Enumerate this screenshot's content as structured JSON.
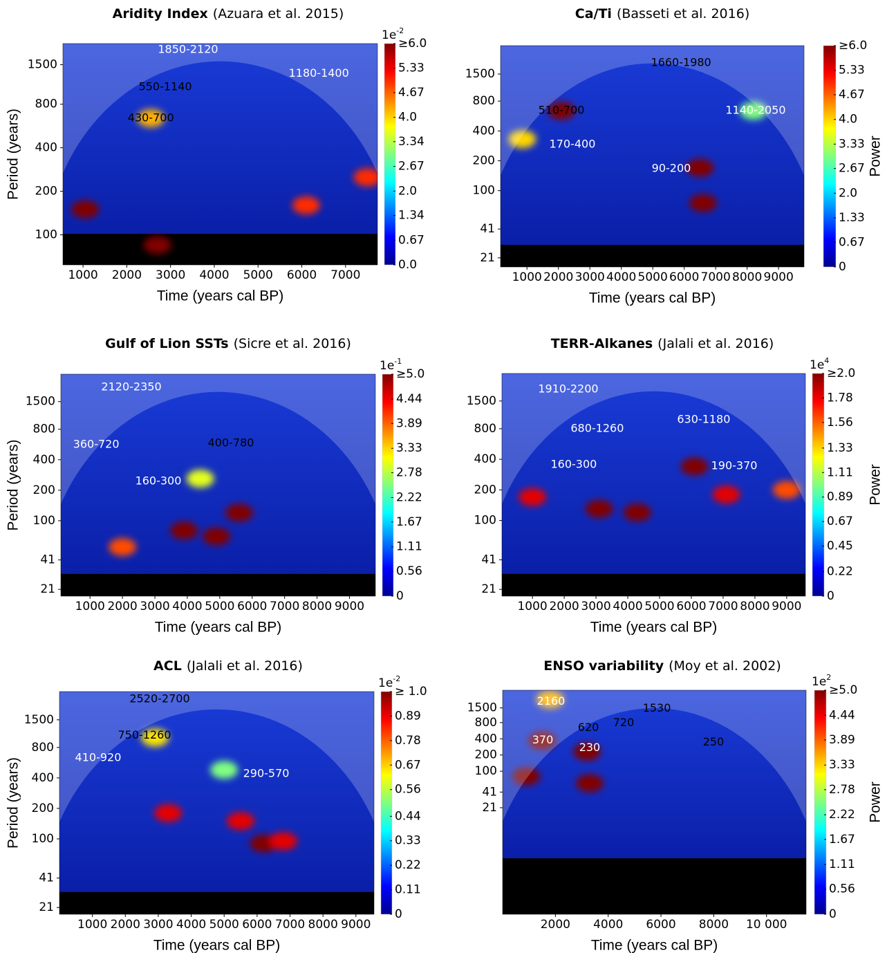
{
  "chart_data": [
    {
      "type": "wavelet",
      "title": "Aridity Index",
      "source": "(Azuara et al. 2015)",
      "xlabel": "Time (years cal BP)",
      "ylabel": "Period (years)",
      "log_scale": true,
      "xlim": [
        540,
        7730
      ],
      "xticks": [
        1000,
        2000,
        3000,
        4000,
        5000,
        6000,
        7000
      ],
      "ylim": [
        62,
        2100
      ],
      "yticks": [
        100,
        200,
        400,
        800,
        1500
      ],
      "colorbar": {
        "exponent_base": "1e",
        "exponent": "-2",
        "lim": [
          0,
          6
        ],
        "ticks": [
          {
            "value": 6,
            "label": "≥6.0"
          },
          5.33,
          4.67,
          {
            "value": 4,
            "label": "4.0"
          },
          3.34,
          2.67,
          {
            "value": 2,
            "label": "2.0"
          },
          1.34,
          0.67,
          {
            "value": 0,
            "label": "0.0"
          }
        ]
      },
      "hotspots": [
        {
          "x": 2550,
          "y": 640,
          "value": 4.2
        },
        {
          "x": 1050,
          "y": 150,
          "value": 6
        },
        {
          "x": 2700,
          "y": 85,
          "value": 6
        },
        {
          "x": 7500,
          "y": 250,
          "value": 5
        },
        {
          "x": 6100,
          "y": 160,
          "value": 5
        }
      ],
      "annotations": [
        {
          "text": "1850-2120",
          "x": 3400,
          "y": 1900,
          "color": "white"
        },
        {
          "text": "1180-1400",
          "x": 6390,
          "y": 1300,
          "color": "white"
        },
        {
          "text": "550-1140",
          "x": 2880,
          "y": 1050,
          "color": "black"
        },
        {
          "text": "430-700",
          "x": 2550,
          "y": 640,
          "color": "black"
        }
      ]
    },
    {
      "type": "wavelet",
      "title": "Ca/Ti",
      "source": "(Basseti et al. 2016)",
      "xlabel": "Time (years cal BP)",
      "log_scale": true,
      "xlim": [
        160,
        9810
      ],
      "xticks": [
        1000,
        2000,
        3000,
        4000,
        5000,
        6000,
        7000,
        8000,
        9000
      ],
      "ylim": [
        17,
        2900
      ],
      "yticks": [
        21,
        41,
        100,
        200,
        400,
        800,
        1500
      ],
      "colorbar": {
        "label": "Power",
        "lim": [
          0,
          6
        ],
        "ticks": [
          {
            "value": 6,
            "label": "≥6.0"
          },
          5.33,
          4.67,
          {
            "value": 4,
            "label": "4.0"
          },
          3.33,
          2.67,
          {
            "value": 2,
            "label": "2.0"
          },
          1.33,
          0.67,
          0
        ]
      },
      "hotspots": [
        {
          "x": 2100,
          "y": 640,
          "value": 6
        },
        {
          "x": 8200,
          "y": 640,
          "value": 3
        },
        {
          "x": 850,
          "y": 330,
          "value": 4
        },
        {
          "x": 6500,
          "y": 170,
          "value": 6
        },
        {
          "x": 6600,
          "y": 75,
          "value": 6
        }
      ],
      "annotations": [
        {
          "text": "1660-1980",
          "x": 5900,
          "y": 1940,
          "color": "black"
        },
        {
          "text": "510-700",
          "x": 2095,
          "y": 640,
          "color": "black"
        },
        {
          "text": "1140-2050",
          "x": 8270,
          "y": 640,
          "color": "white"
        },
        {
          "text": "170-400",
          "x": 2445,
          "y": 291,
          "color": "white"
        },
        {
          "text": "90-200",
          "x": 5590,
          "y": 166,
          "color": "white"
        }
      ]
    },
    {
      "type": "wavelet",
      "title": "Gulf of Lion SSTs",
      "source": "(Sicre et al. 2016)",
      "xlabel": "Time (years cal BP)",
      "ylabel": "Period (years)",
      "log_scale": true,
      "xlim": [
        100,
        9800
      ],
      "xticks": [
        1000,
        2000,
        3000,
        4000,
        5000,
        6000,
        7000,
        8000,
        9000
      ],
      "ylim": [
        18,
        2800
      ],
      "yticks": [
        21,
        41,
        100,
        200,
        400,
        800,
        1500
      ],
      "colorbar": {
        "exponent_base": "1e",
        "exponent": "-1",
        "lim": [
          0,
          5
        ],
        "ticks": [
          {
            "value": 5,
            "label": "≥5.0"
          },
          4.44,
          3.89,
          3.33,
          2.78,
          2.22,
          1.67,
          1.11,
          0.56,
          0
        ]
      },
      "hotspots": [
        {
          "x": 3900,
          "y": 80,
          "value": 5
        },
        {
          "x": 5600,
          "y": 120,
          "value": 5
        },
        {
          "x": 4400,
          "y": 260,
          "value": 3
        },
        {
          "x": 2000,
          "y": 55,
          "value": 4
        },
        {
          "x": 4900,
          "y": 70,
          "value": 5
        }
      ],
      "annotations": [
        {
          "text": "2120-2350",
          "x": 2275,
          "y": 2070,
          "color": "white"
        },
        {
          "text": "360-720",
          "x": 1190,
          "y": 564,
          "color": "white"
        },
        {
          "text": "400-780",
          "x": 5345,
          "y": 580,
          "color": "black"
        },
        {
          "text": "160-300",
          "x": 3106,
          "y": 244,
          "color": "white"
        }
      ]
    },
    {
      "type": "wavelet",
      "title": "TERR-Alkanes",
      "source": "(Jalali et al. 2016)",
      "xlabel": "Time (years cal BP)",
      "log_scale": true,
      "xlim": [
        40,
        9590
      ],
      "xticks": [
        1000,
        2000,
        3000,
        4000,
        5000,
        6000,
        7000,
        8000,
        9000
      ],
      "ylim": [
        18,
        2800
      ],
      "yticks": [
        21,
        41,
        100,
        200,
        400,
        800,
        1500
      ],
      "colorbar": {
        "label": "Power",
        "exponent_base": "1e",
        "exponent": "4",
        "lim": [
          0,
          2
        ],
        "ticks": [
          {
            "value": 2,
            "label": "≥2.0"
          },
          1.78,
          1.56,
          1.33,
          1.11,
          0.89,
          0.67,
          0.45,
          0.22,
          0
        ]
      },
      "hotspots": [
        {
          "x": 6100,
          "y": 340,
          "value": 2
        },
        {
          "x": 7100,
          "y": 180,
          "value": 1.8
        },
        {
          "x": 9000,
          "y": 200,
          "value": 1.6
        },
        {
          "x": 1000,
          "y": 170,
          "value": 1.8
        },
        {
          "x": 3100,
          "y": 130,
          "value": 2
        },
        {
          "x": 4300,
          "y": 120,
          "value": 2
        }
      ],
      "annotations": [
        {
          "text": "1910-2200",
          "x": 2128,
          "y": 1960,
          "color": "white"
        },
        {
          "text": "630-1180",
          "x": 6390,
          "y": 980,
          "color": "white"
        },
        {
          "text": "680-1260",
          "x": 3040,
          "y": 800,
          "color": "white"
        },
        {
          "text": "160-300",
          "x": 2300,
          "y": 354,
          "color": "white"
        },
        {
          "text": "190-370",
          "x": 7350,
          "y": 343,
          "color": "white"
        }
      ]
    },
    {
      "type": "wavelet",
      "title": "ACL",
      "source": "(Jalali et al. 2016)",
      "xlabel": "Time (years cal BP)",
      "ylabel": "Period (years)",
      "log_scale": true,
      "xlim": [
        0,
        9550
      ],
      "xticks": [
        1000,
        2000,
        3000,
        4000,
        5000,
        6000,
        7000,
        8000,
        9000
      ],
      "ylim": [
        18,
        2850
      ],
      "yticks": [
        21,
        41,
        100,
        200,
        400,
        800,
        1500
      ],
      "colorbar": {
        "exponent_base": "1e",
        "exponent": "-2",
        "lim": [
          0,
          1
        ],
        "ticks": [
          {
            "value": 1,
            "label": "≥ 1.0"
          },
          0.89,
          0.78,
          0.67,
          0.56,
          0.44,
          0.33,
          0.22,
          0.11,
          0
        ]
      },
      "hotspots": [
        {
          "x": 2900,
          "y": 1000,
          "value": 0.65
        },
        {
          "x": 5000,
          "y": 480,
          "value": 0.5
        },
        {
          "x": 6200,
          "y": 90,
          "value": 1
        },
        {
          "x": 3300,
          "y": 180,
          "value": 0.9
        },
        {
          "x": 5500,
          "y": 150,
          "value": 0.9
        },
        {
          "x": 6800,
          "y": 95,
          "value": 0.9
        }
      ],
      "annotations": [
        {
          "text": "2520-2700",
          "x": 3044,
          "y": 2390,
          "color": "black"
        },
        {
          "text": "750-1260",
          "x": 2582,
          "y": 1050,
          "color": "black"
        },
        {
          "text": "410-920",
          "x": 1175,
          "y": 630,
          "color": "white"
        },
        {
          "text": "290-570",
          "x": 6276,
          "y": 437,
          "color": "white"
        }
      ]
    },
    {
      "type": "wavelet",
      "title": "ENSO variability",
      "source": "(Moy et al. 2002)",
      "xlabel": "Time (years cal BP)",
      "log_scale": true,
      "xlim": [
        0,
        11500
      ],
      "xticks": [
        2000,
        4000,
        6000,
        8000,
        {
          "value": 10000,
          "label": "10 000"
        }
      ],
      "ylim": [
        0.22,
        3200
      ],
      "yticks": [
        21,
        41,
        100,
        200,
        400,
        800,
        1500
      ],
      "colorbar": {
        "label": "Power",
        "exponent_base": "1e",
        "exponent": "2",
        "lim": [
          0,
          5
        ],
        "ticks": [
          {
            "value": 5,
            "label": "≥5.0"
          },
          4.44,
          3.89,
          3.33,
          2.78,
          2.22,
          1.67,
          1.11,
          0.56,
          0
        ]
      },
      "hotspots": [
        {
          "x": 3200,
          "y": 230,
          "value": 5
        },
        {
          "x": 1500,
          "y": 370,
          "value": 5
        },
        {
          "x": 1800,
          "y": 2160,
          "value": 3.5
        },
        {
          "x": 900,
          "y": 80,
          "value": 5
        },
        {
          "x": 3300,
          "y": 60,
          "value": 5
        }
      ],
      "annotations": [
        {
          "text": "2160",
          "x": 1834,
          "y": 1960,
          "color": "white"
        },
        {
          "text": "1530",
          "x": 5843,
          "y": 1460,
          "color": "black"
        },
        {
          "text": "620",
          "x": 3250,
          "y": 640,
          "color": "black"
        },
        {
          "text": "720",
          "x": 4585,
          "y": 780,
          "color": "black"
        },
        {
          "text": "370",
          "x": 1520,
          "y": 373,
          "color": "white"
        },
        {
          "text": "230",
          "x": 3300,
          "y": 270,
          "color": "white"
        },
        {
          "text": "250",
          "x": 7990,
          "y": 341,
          "color": "black"
        }
      ]
    }
  ]
}
